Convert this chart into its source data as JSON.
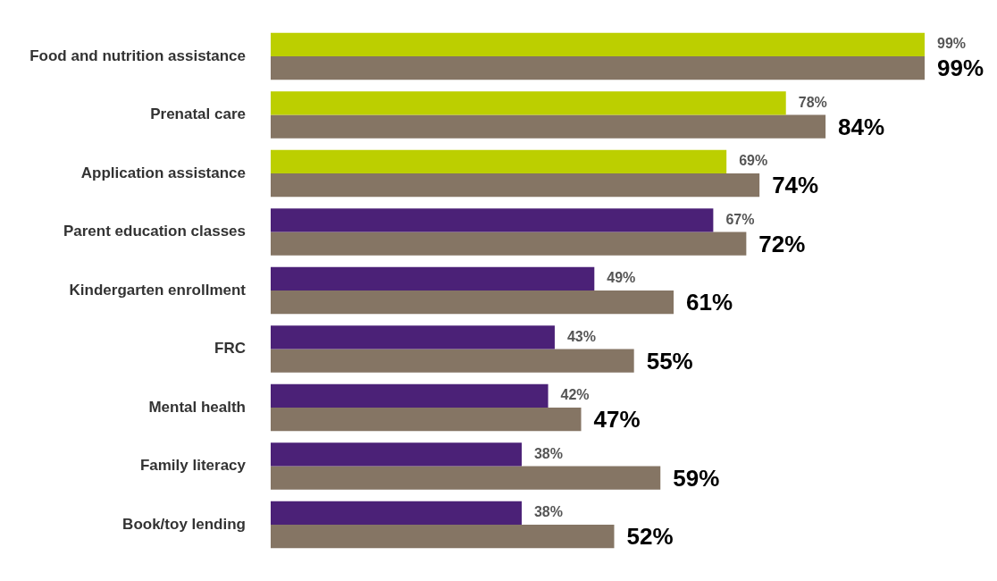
{
  "chart_data": {
    "type": "bar",
    "orientation": "horizontal",
    "categories": [
      "Food and nutrition assistance",
      "Prenatal care",
      "Application assistance",
      "Parent education classes",
      "Kindergarten enrollment",
      "FRC",
      "Mental health",
      "Family literacy",
      "Book/toy lending"
    ],
    "series": [
      {
        "colors": [
          "#bccf00",
          "#bccf00",
          "#bccf00",
          "#4b2177",
          "#4b2177",
          "#4b2177",
          "#4b2177",
          "#4b2177",
          "#4b2177"
        ],
        "values": [
          99,
          78,
          69,
          67,
          49,
          43,
          42,
          38,
          38
        ],
        "value_labels": [
          "99%",
          "78%",
          "69%",
          "67%",
          "49%",
          "43%",
          "42%",
          "38%",
          "38%"
        ]
      },
      {
        "color": "#857564",
        "values": [
          99,
          84,
          74,
          72,
          61,
          55,
          47,
          59,
          52
        ],
        "value_labels": [
          "99%",
          "84%",
          "74%",
          "72%",
          "61%",
          "55%",
          "47%",
          "59%",
          "52%"
        ]
      }
    ]
  }
}
